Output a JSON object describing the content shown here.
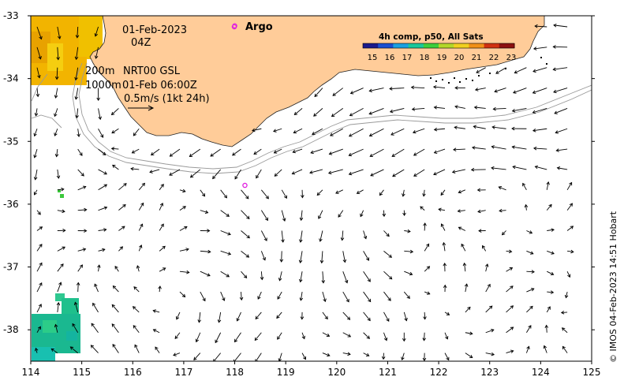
{
  "map": {
    "date": "01-Feb-2023",
    "hour": "04Z",
    "depth_line1": "200m",
    "depth_line2": "1000m",
    "product_line1": "NRT00 GSL",
    "product_line2": "01-Feb 06:00Z",
    "scale_label": "0.5m/s (1kt 24h)",
    "argo_label": "Argo",
    "credit": "© IMOS 04-Feb-2023 14:51 Hobart"
  },
  "colorbar": {
    "title": "4h comp, p50, All Sats",
    "ticks": [
      "15",
      "16",
      "17",
      "18",
      "19",
      "20",
      "21",
      "22",
      "23"
    ],
    "colors": [
      "#1a1a8c",
      "#1a4fd0",
      "#1aa0e0",
      "#1ac89a",
      "#3ccf3c",
      "#b4d82a",
      "#f0d020",
      "#f09018",
      "#d03010",
      "#8c1010"
    ]
  },
  "axes": {
    "x_ticks": [
      "114",
      "115",
      "116",
      "117",
      "118",
      "119",
      "120",
      "121",
      "122",
      "123",
      "124",
      "125"
    ],
    "y_ticks": [
      "-33",
      "-34",
      "-35",
      "-36",
      "-37",
      "-38"
    ],
    "xlim": [
      114,
      125
    ],
    "ylim": [
      -38.5,
      -33
    ]
  },
  "colors": {
    "land": "#ffcc99",
    "argo": "#e020e0"
  },
  "argo_floats": [
    {
      "lon": 118.0,
      "lat": -33.16
    },
    {
      "lon": 118.2,
      "lat": -35.7
    }
  ]
}
